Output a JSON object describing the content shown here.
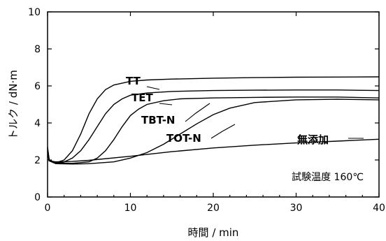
{
  "chart_data": {
    "type": "line",
    "xlabel": "時間 / min",
    "ylabel": "トルク / dN·m",
    "xlim": [
      0,
      40
    ],
    "ylim": [
      0,
      10
    ],
    "xticks": [
      0,
      10,
      20,
      30,
      40
    ],
    "yticks": [
      0,
      2,
      4,
      6,
      8,
      10
    ],
    "grid": false,
    "legend": "inline labels with leader lines",
    "annotation": "試験温度 160℃",
    "series": [
      {
        "name": "TT",
        "x": [
          0,
          0.2,
          1,
          2,
          3,
          4,
          5,
          6,
          7,
          8,
          10,
          12,
          15,
          20,
          25,
          30,
          35,
          40
        ],
        "y": [
          2.7,
          2.0,
          1.85,
          2.0,
          2.5,
          3.4,
          4.5,
          5.3,
          5.8,
          6.05,
          6.25,
          6.32,
          6.37,
          6.42,
          6.45,
          6.47,
          6.48,
          6.49
        ]
      },
      {
        "name": "TET",
        "x": [
          0,
          0.2,
          1,
          2,
          3,
          4,
          5,
          6,
          7,
          8,
          9,
          10,
          12,
          15,
          20,
          25,
          30,
          35,
          40
        ],
        "y": [
          2.6,
          2.0,
          1.85,
          1.9,
          2.1,
          2.5,
          3.1,
          3.8,
          4.5,
          5.0,
          5.3,
          5.5,
          5.62,
          5.7,
          5.75,
          5.77,
          5.78,
          5.78,
          5.75
        ]
      },
      {
        "name": "TBT-N",
        "x": [
          0,
          0.2,
          1,
          3,
          5,
          6,
          7,
          8,
          9,
          10,
          11,
          12,
          14,
          16,
          20,
          25,
          30,
          35,
          40
        ],
        "y": [
          2.5,
          1.95,
          1.85,
          1.82,
          1.9,
          2.1,
          2.5,
          3.1,
          3.8,
          4.4,
          4.75,
          5.0,
          5.2,
          5.3,
          5.35,
          5.38,
          5.4,
          5.4,
          5.35
        ]
      },
      {
        "name": "TOT-N",
        "x": [
          0,
          0.2,
          1,
          3,
          5,
          8,
          10,
          12,
          14,
          16,
          18,
          20,
          22,
          25,
          30,
          35,
          40
        ],
        "y": [
          2.5,
          1.95,
          1.8,
          1.78,
          1.8,
          1.9,
          2.1,
          2.4,
          2.85,
          3.4,
          3.95,
          4.45,
          4.8,
          5.1,
          5.25,
          5.28,
          5.25
        ]
      },
      {
        "name": "無添加",
        "x": [
          0,
          0.2,
          1,
          3,
          5,
          10,
          15,
          20,
          25,
          30,
          35,
          40
        ],
        "y": [
          2.4,
          1.95,
          1.9,
          1.92,
          1.98,
          2.2,
          2.45,
          2.65,
          2.8,
          2.92,
          3.02,
          3.12
        ]
      }
    ]
  }
}
